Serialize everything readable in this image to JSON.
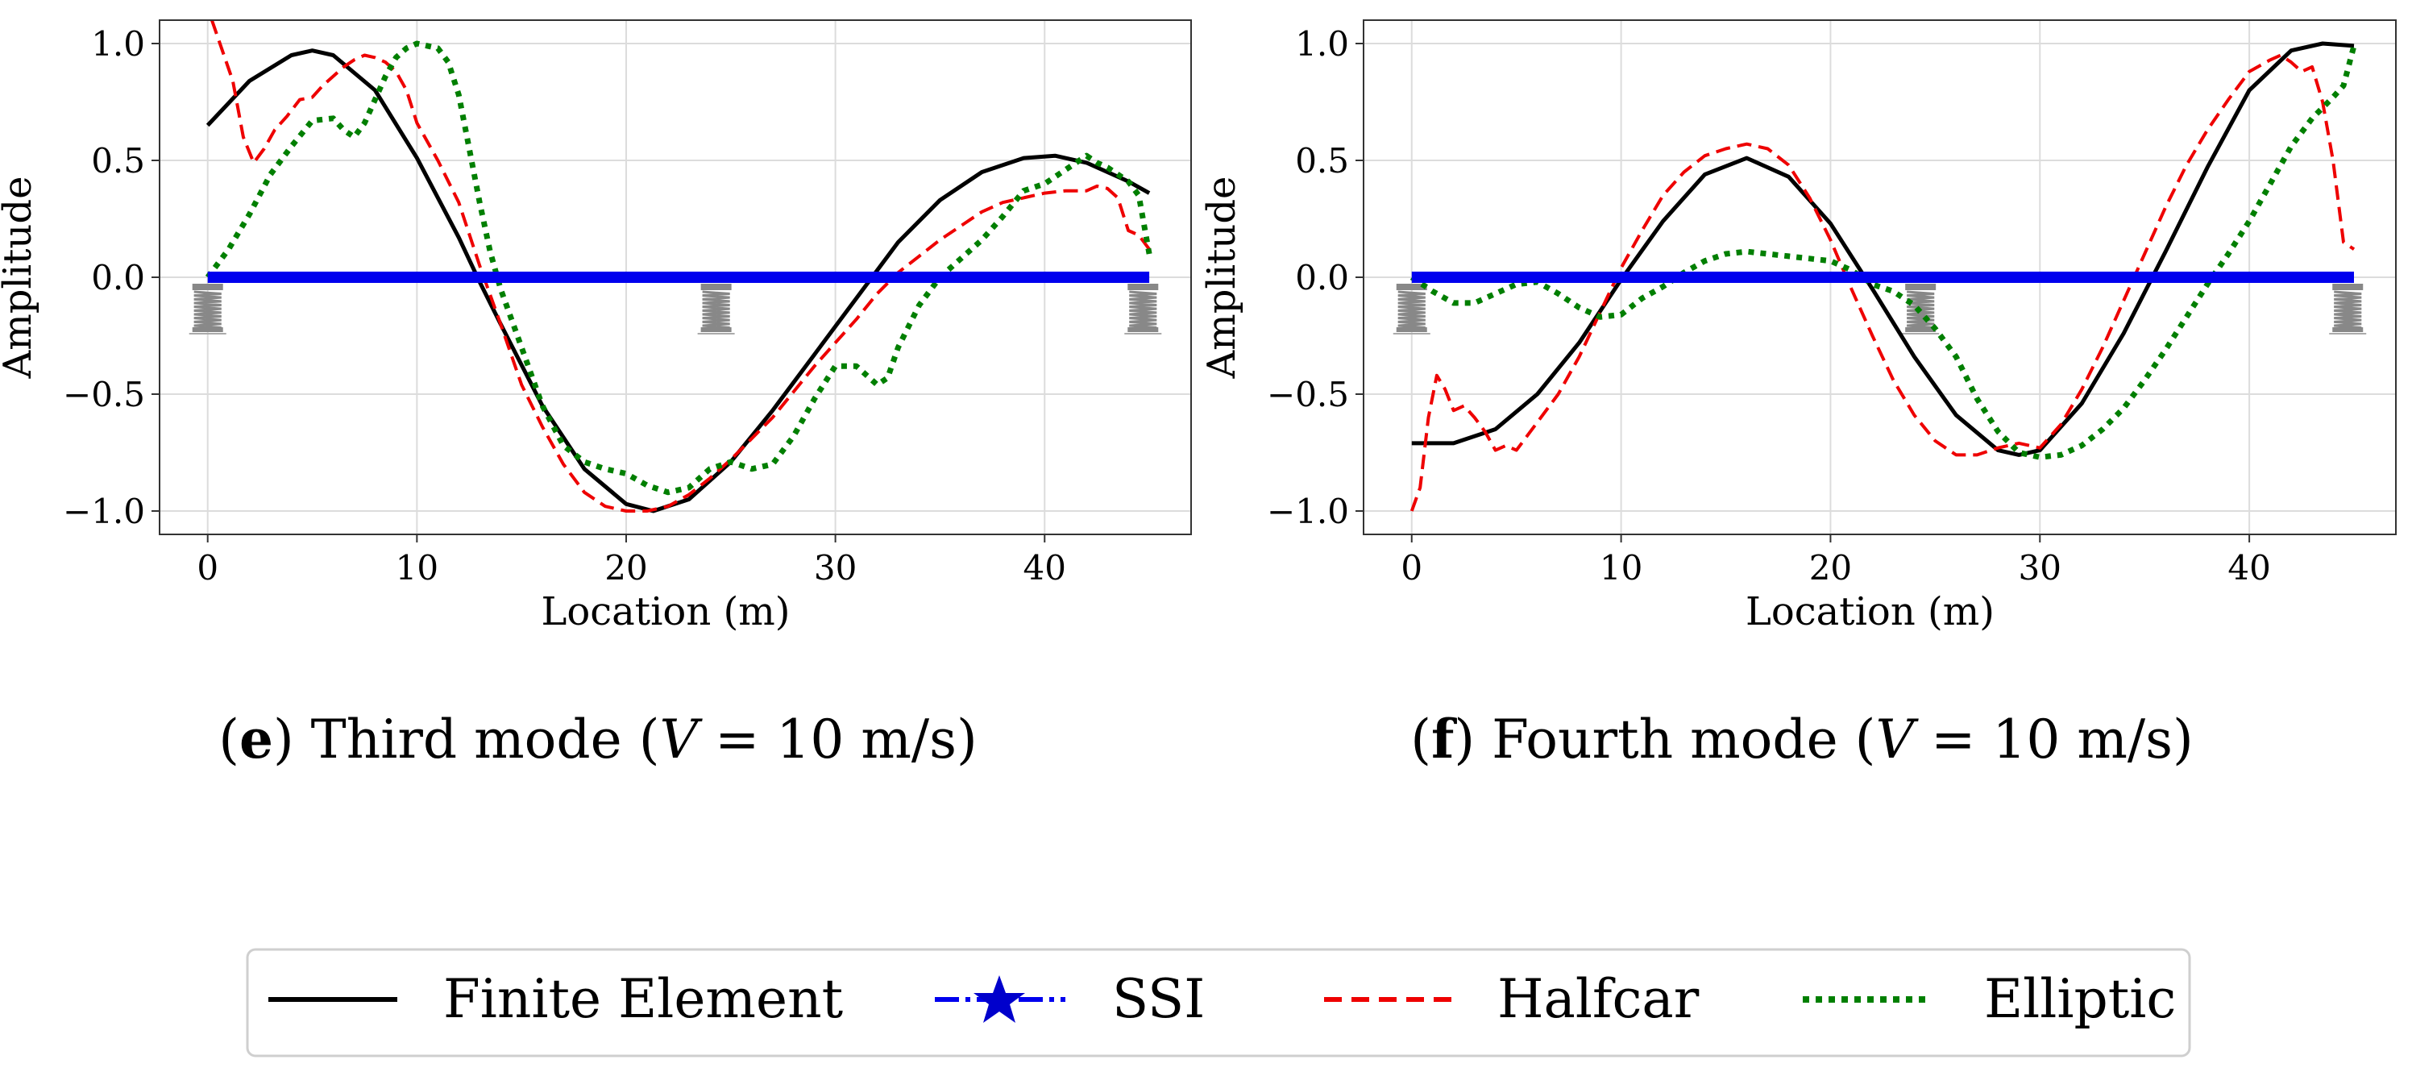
{
  "chart_data": [
    {
      "type": "line",
      "caption": {
        "prefix": "(",
        "letter": "e",
        "text": ") Third mode (",
        "var": "V",
        "eq": " = 10 m/s)"
      },
      "xlabel": "Location (m)",
      "ylabel": "Amplitude",
      "xlim": [
        -2.3,
        47
      ],
      "ylim": [
        -1.1,
        1.1
      ],
      "xticks": [
        0,
        10,
        20,
        30,
        40
      ],
      "xtick_labels": [
        "0",
        "10",
        "20",
        "30",
        "40"
      ],
      "yticks": [
        -1.0,
        -0.5,
        0.0,
        0.5,
        1.0
      ],
      "ytick_labels": [
        "−1.0",
        "−0.5",
        "0.0",
        "0.5",
        "1.0"
      ],
      "grid": true,
      "supports_at": [
        0,
        24.3,
        44.7
      ],
      "series": [
        {
          "name": "Finite Element",
          "x": [
            0,
            2,
            4,
            5,
            6,
            8,
            10,
            12,
            13,
            14,
            16,
            18,
            20,
            21.3,
            23,
            25,
            27,
            29,
            31,
            33,
            35,
            37,
            39,
            40.5,
            42,
            44,
            45
          ],
          "y": [
            0.65,
            0.84,
            0.95,
            0.97,
            0.95,
            0.8,
            0.51,
            0.17,
            -0.02,
            -0.2,
            -0.55,
            -0.82,
            -0.97,
            -1.0,
            -0.95,
            -0.79,
            -0.57,
            -0.33,
            -0.09,
            0.15,
            0.33,
            0.45,
            0.51,
            0.52,
            0.49,
            0.41,
            0.36
          ]
        },
        {
          "name": "SSI",
          "x": [
            0,
            45
          ],
          "y": [
            0.0,
            0.0
          ]
        },
        {
          "name": "Halfcar",
          "x": [
            0.2,
            0.7,
            1.2,
            1.7,
            2.2,
            2.7,
            3.2,
            3.8,
            4.4,
            5.0,
            5.5,
            6.0,
            6.5,
            7.0,
            7.5,
            8.0,
            8.5,
            9.0,
            9.5,
            10.0,
            11,
            12,
            13,
            14,
            15,
            16,
            17,
            18,
            19,
            20,
            21,
            22,
            23,
            24,
            25,
            26,
            27,
            28,
            29,
            30,
            31,
            32,
            33,
            34,
            35,
            36,
            37,
            38,
            39,
            40,
            41,
            42,
            42.5,
            43,
            43.5,
            44,
            44.5,
            45
          ],
          "y": [
            1.1,
            0.97,
            0.84,
            0.6,
            0.49,
            0.55,
            0.63,
            0.69,
            0.76,
            0.77,
            0.82,
            0.86,
            0.9,
            0.93,
            0.95,
            0.94,
            0.92,
            0.88,
            0.8,
            0.66,
            0.5,
            0.32,
            0.05,
            -0.2,
            -0.46,
            -0.64,
            -0.8,
            -0.92,
            -0.98,
            -1.0,
            -1.0,
            -0.98,
            -0.93,
            -0.86,
            -0.78,
            -0.69,
            -0.6,
            -0.49,
            -0.38,
            -0.28,
            -0.18,
            -0.07,
            0.02,
            0.09,
            0.16,
            0.22,
            0.28,
            0.32,
            0.34,
            0.36,
            0.37,
            0.37,
            0.39,
            0.38,
            0.34,
            0.2,
            0.18,
            0.12
          ]
        },
        {
          "name": "Elliptic",
          "x": [
            0,
            1,
            2,
            3,
            4,
            5,
            6,
            6.5,
            7,
            7.5,
            8,
            8.5,
            9,
            9.5,
            10,
            10.5,
            11,
            11.5,
            12,
            12.5,
            13,
            13.5,
            14,
            15,
            16,
            17,
            18,
            19,
            20,
            21,
            22,
            23,
            24,
            25,
            26,
            27,
            28,
            29,
            30,
            31,
            31.5,
            32,
            32.5,
            33,
            34,
            35,
            36,
            37,
            38,
            39,
            40,
            41,
            42,
            42.5,
            43,
            43.5,
            44,
            44.5,
            45
          ],
          "y": [
            0.0,
            0.12,
            0.27,
            0.44,
            0.56,
            0.67,
            0.68,
            0.63,
            0.6,
            0.66,
            0.76,
            0.86,
            0.94,
            0.98,
            1.0,
            0.99,
            0.98,
            0.92,
            0.78,
            0.55,
            0.32,
            0.11,
            -0.05,
            -0.3,
            -0.55,
            -0.72,
            -0.79,
            -0.82,
            -0.84,
            -0.89,
            -0.92,
            -0.9,
            -0.82,
            -0.79,
            -0.82,
            -0.8,
            -0.68,
            -0.52,
            -0.38,
            -0.38,
            -0.42,
            -0.46,
            -0.43,
            -0.3,
            -0.12,
            0.0,
            0.08,
            0.16,
            0.26,
            0.37,
            0.4,
            0.46,
            0.52,
            0.49,
            0.47,
            0.44,
            0.41,
            0.35,
            0.1
          ]
        }
      ]
    },
    {
      "type": "line",
      "caption": {
        "prefix": "(",
        "letter": "f",
        "text": ") Fourth mode (",
        "var": "V",
        "eq": " = 10 m/s)"
      },
      "xlabel": "Location (m)",
      "ylabel": "Amplitude",
      "xlim": [
        -2.3,
        47
      ],
      "ylim": [
        -1.1,
        1.1
      ],
      "xticks": [
        0,
        10,
        20,
        30,
        40
      ],
      "xtick_labels": [
        "0",
        "10",
        "20",
        "30",
        "40"
      ],
      "yticks": [
        -1.0,
        -0.5,
        0.0,
        0.5,
        1.0
      ],
      "ytick_labels": [
        "−1.0",
        "−0.5",
        "0.0",
        "0.5",
        "1.0"
      ],
      "grid": true,
      "supports_at": [
        0,
        24.3,
        44.7
      ],
      "series": [
        {
          "name": "Finite Element",
          "x": [
            0,
            2,
            4,
            6,
            8,
            10,
            12,
            14,
            16,
            18,
            20,
            22,
            24,
            26,
            28,
            29,
            30,
            32,
            34,
            36,
            38,
            40,
            42,
            43.5,
            45
          ],
          "y": [
            -0.71,
            -0.71,
            -0.65,
            -0.5,
            -0.28,
            -0.01,
            0.24,
            0.44,
            0.51,
            0.43,
            0.23,
            -0.05,
            -0.34,
            -0.59,
            -0.74,
            -0.76,
            -0.74,
            -0.54,
            -0.24,
            0.11,
            0.47,
            0.8,
            0.97,
            1.0,
            0.99
          ]
        },
        {
          "name": "SSI",
          "x": [
            0,
            45
          ],
          "y": [
            0.0,
            0.0
          ]
        },
        {
          "name": "Halfcar",
          "x": [
            0,
            0.4,
            0.8,
            1.2,
            1.6,
            2.0,
            2.5,
            3.0,
            3.5,
            4.0,
            4.5,
            5.0,
            6,
            7,
            8,
            9,
            10,
            11,
            12,
            13,
            14,
            15,
            16,
            17,
            18,
            19,
            20,
            21,
            22,
            23,
            24,
            25,
            26,
            27,
            28,
            29,
            30,
            31,
            32,
            33,
            34,
            35,
            36,
            37,
            38,
            39,
            40,
            41,
            41.5,
            42,
            42.5,
            43,
            43.5,
            44,
            44.5,
            45
          ],
          "y": [
            -1.0,
            -0.9,
            -0.6,
            -0.42,
            -0.48,
            -0.57,
            -0.55,
            -0.6,
            -0.66,
            -0.74,
            -0.72,
            -0.74,
            -0.62,
            -0.5,
            -0.34,
            -0.15,
            0.04,
            0.2,
            0.35,
            0.45,
            0.52,
            0.55,
            0.57,
            0.55,
            0.48,
            0.34,
            0.16,
            -0.05,
            -0.25,
            -0.44,
            -0.59,
            -0.7,
            -0.76,
            -0.76,
            -0.73,
            -0.71,
            -0.73,
            -0.63,
            -0.48,
            -0.3,
            -0.1,
            0.1,
            0.3,
            0.48,
            0.63,
            0.76,
            0.88,
            0.93,
            0.95,
            0.92,
            0.88,
            0.9,
            0.75,
            0.5,
            0.15,
            0.12
          ]
        },
        {
          "name": "Elliptic",
          "x": [
            0,
            1,
            2,
            3,
            4,
            5,
            6,
            7,
            8,
            9,
            10,
            11,
            12,
            13,
            14,
            15,
            16,
            17,
            18,
            19,
            20,
            21,
            22,
            23,
            24,
            25,
            26,
            27,
            28,
            29,
            30,
            31,
            32,
            33,
            34,
            35,
            36,
            37,
            38,
            39,
            40,
            41,
            42,
            43,
            44,
            44.5,
            45
          ],
          "y": [
            0.0,
            -0.06,
            -0.11,
            -0.11,
            -0.07,
            -0.03,
            -0.02,
            -0.07,
            -0.13,
            -0.17,
            -0.16,
            -0.09,
            -0.04,
            0.02,
            0.07,
            0.1,
            0.11,
            0.1,
            0.09,
            0.08,
            0.07,
            0.03,
            -0.03,
            -0.06,
            -0.12,
            -0.22,
            -0.34,
            -0.52,
            -0.66,
            -0.75,
            -0.77,
            -0.76,
            -0.72,
            -0.65,
            -0.56,
            -0.44,
            -0.31,
            -0.17,
            -0.03,
            0.1,
            0.24,
            0.4,
            0.56,
            0.68,
            0.77,
            0.82,
            0.99
          ]
        }
      ]
    }
  ],
  "legend": {
    "entries": [
      {
        "label": "Finite Element",
        "color": "#000000"
      },
      {
        "label": "SSI",
        "color": "#0000ee"
      },
      {
        "label": "Halfcar",
        "color": "#ee0000"
      },
      {
        "label": "Elliptic",
        "color": "#007f00"
      }
    ]
  },
  "colors": {
    "finite_element": "#000000",
    "ssi": "#0000ee",
    "halfcar": "#ee0000",
    "elliptic": "#007f00",
    "grid": "#dcdcdc",
    "spring": "#888888"
  }
}
